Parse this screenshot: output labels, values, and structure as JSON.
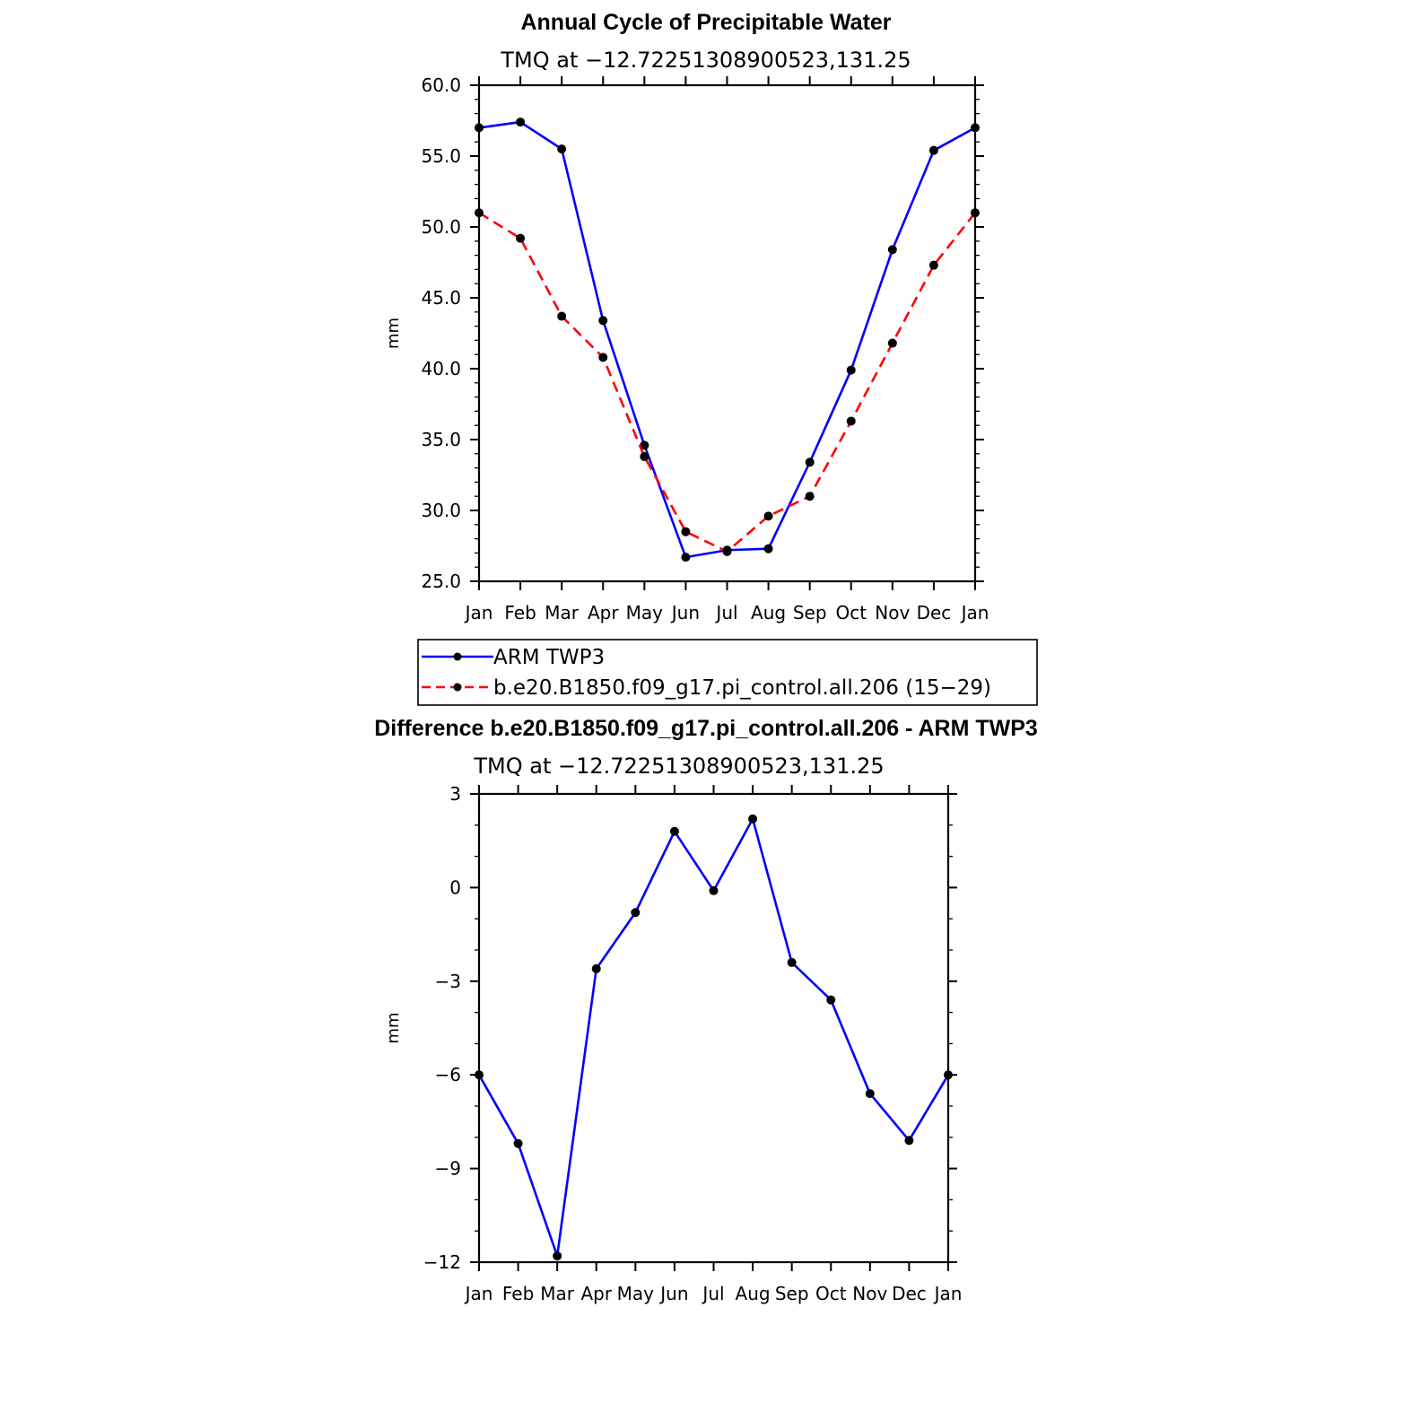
{
  "chart_data": [
    {
      "type": "line",
      "title": "Annual Cycle of Precipitable Water",
      "subtitle": "TMQ at −12.72251308900523,131.25",
      "ylabel": "mm",
      "xlabel": "",
      "categories": [
        "Jan",
        "Feb",
        "Mar",
        "Apr",
        "May",
        "Jun",
        "Jul",
        "Aug",
        "Sep",
        "Oct",
        "Nov",
        "Dec",
        "Jan"
      ],
      "ylim": [
        25.0,
        60.0
      ],
      "yticks": [
        "25.0",
        "30.0",
        "35.0",
        "40.0",
        "45.0",
        "50.0",
        "55.0",
        "60.0"
      ],
      "grid": false,
      "legend_position": "below",
      "series": [
        {
          "name": "ARM TWP3",
          "color": "#0000ff",
          "dash": "solid",
          "values": [
            57.0,
            57.4,
            55.5,
            43.4,
            34.6,
            26.7,
            27.2,
            27.3,
            33.4,
            39.9,
            48.4,
            55.4,
            57.0
          ]
        },
        {
          "name": "b.e20.B1850.f09_g17.pi_control.all.206 (15−29)",
          "color": "#ff0000",
          "dash": "dashed",
          "values": [
            51.0,
            49.2,
            43.7,
            40.8,
            33.8,
            28.5,
            27.1,
            29.6,
            31.0,
            36.3,
            41.8,
            47.3,
            51.0
          ]
        }
      ]
    },
    {
      "type": "line",
      "title": "Difference b.e20.B1850.f09_g17.pi_control.all.206 - ARM TWP3",
      "subtitle": "TMQ at −12.72251308900523,131.25",
      "ylabel": "mm",
      "xlabel": "",
      "categories": [
        "Jan",
        "Feb",
        "Mar",
        "Apr",
        "May",
        "Jun",
        "Jul",
        "Aug",
        "Sep",
        "Oct",
        "Nov",
        "Dec",
        "Jan"
      ],
      "ylim": [
        -12,
        3
      ],
      "yticks": [
        "−12",
        "−9",
        "−6",
        "−3",
        "0",
        "3"
      ],
      "grid": false,
      "series": [
        {
          "color": "#0000ff",
          "dash": "solid",
          "values": [
            -6.0,
            -8.2,
            -11.8,
            -2.6,
            -0.8,
            1.8,
            -0.1,
            2.2,
            -2.4,
            -3.6,
            -6.6,
            -8.1,
            -6.0
          ]
        }
      ]
    }
  ],
  "legend": {
    "items": [
      {
        "label": "ARM TWP3",
        "color": "#0000ff",
        "dash": "solid"
      },
      {
        "label": "b.e20.B1850.f09_g17.pi_control.all.206 (15−29)",
        "color": "#ff0000",
        "dash": "dashed"
      }
    ]
  }
}
